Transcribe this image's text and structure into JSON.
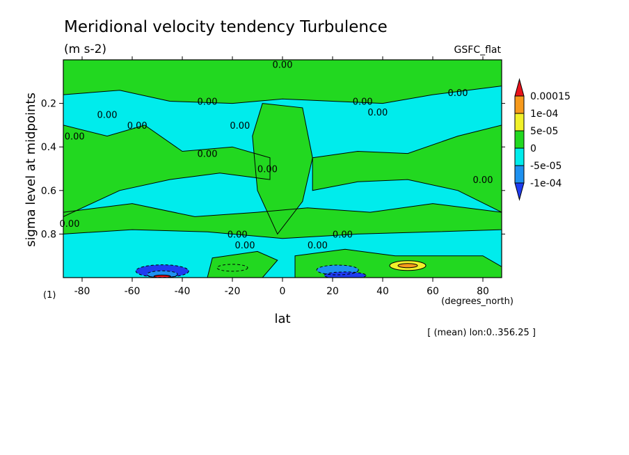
{
  "chart_data": {
    "type": "heatmap",
    "title": "Meridional velocity tendency Turbulence",
    "units": "(m s-2)",
    "source": "GSFC_flat",
    "xlabel": "lat",
    "xunits": "(degrees_north)",
    "ylabel": "sigma level at midpoints",
    "xlim": [
      -87.5,
      87.5
    ],
    "ylim": [
      1.0,
      0.0
    ],
    "y_axis_inverted": true,
    "xticks": [
      "-80",
      "-60",
      "-40",
      "-20",
      "0",
      "20",
      "40",
      "60",
      "80"
    ],
    "xtick_values": [
      -80,
      -60,
      -40,
      -20,
      0,
      20,
      40,
      60,
      80
    ],
    "yticks": [
      "0.2",
      "0.4",
      "0.6",
      "0.8"
    ],
    "ytick_values": [
      0.2,
      0.4,
      0.6,
      0.8
    ],
    "panel_label": "(1)",
    "footer": "[ (mean) lon:0..356.25 ]",
    "contour_labels": [
      {
        "text": "0.00",
        "x": -30,
        "y": 0.19
      },
      {
        "text": "0.00",
        "x": 32,
        "y": 0.19
      },
      {
        "text": "0.00",
        "x": 38,
        "y": 0.24
      },
      {
        "text": "0.00",
        "x": -30,
        "y": 0.43
      },
      {
        "text": "0.00",
        "x": -17,
        "y": 0.3
      },
      {
        "text": "0.00",
        "x": -6,
        "y": 0.5
      },
      {
        "text": "0.00",
        "x": -85,
        "y": 0.75
      },
      {
        "text": "0.00",
        "x": -18,
        "y": 0.8
      },
      {
        "text": "0.00",
        "x": -15,
        "y": 0.85
      },
      {
        "text": "0.00",
        "x": 24,
        "y": 0.8
      },
      {
        "text": "0.00",
        "x": 14,
        "y": 0.85
      },
      {
        "text": "0.00",
        "x": -83,
        "y": 0.35
      },
      {
        "text": "0.00",
        "x": -70,
        "y": 0.25
      },
      {
        "text": "0.00",
        "x": -58,
        "y": 0.3
      },
      {
        "text": "0.00",
        "x": 70,
        "y": 0.15
      },
      {
        "text": "0.00",
        "x": 80,
        "y": 0.55
      },
      {
        "text": "0.00",
        "x": 0,
        "y": 0.02
      }
    ],
    "colorbar": {
      "levels": [
        "0.00015",
        "1e-04",
        "5e-05",
        "0",
        "-5e-05",
        "-1e-04"
      ],
      "level_values": [
        0.00015,
        0.0001,
        5e-05,
        0,
        -5e-05,
        -0.0001
      ],
      "colors": [
        "#e8131b",
        "#f79a1c",
        "#f1f12a",
        "#22d820",
        "#00ecec",
        "#1e91f0",
        "#1f3cf0"
      ],
      "extends": "both"
    },
    "regions": [
      {
        "value_range": "0 to 5e-05",
        "color": "#22d820",
        "extent": "upper troposphere bands, mid-latitudes"
      },
      {
        "value_range": "-5e-05 to 0",
        "color": "#00ecec",
        "extent": "bands near sigma 0.2-0.3, 0.45, 0.8-0.95"
      },
      {
        "value_range": "< -1e-04",
        "color": "#1f3cf0",
        "extent": "near surface around -50 and 50"
      },
      {
        "value_range": "> 1e-04",
        "color": "#f79a1c",
        "extent": "near surface around 50"
      }
    ]
  }
}
